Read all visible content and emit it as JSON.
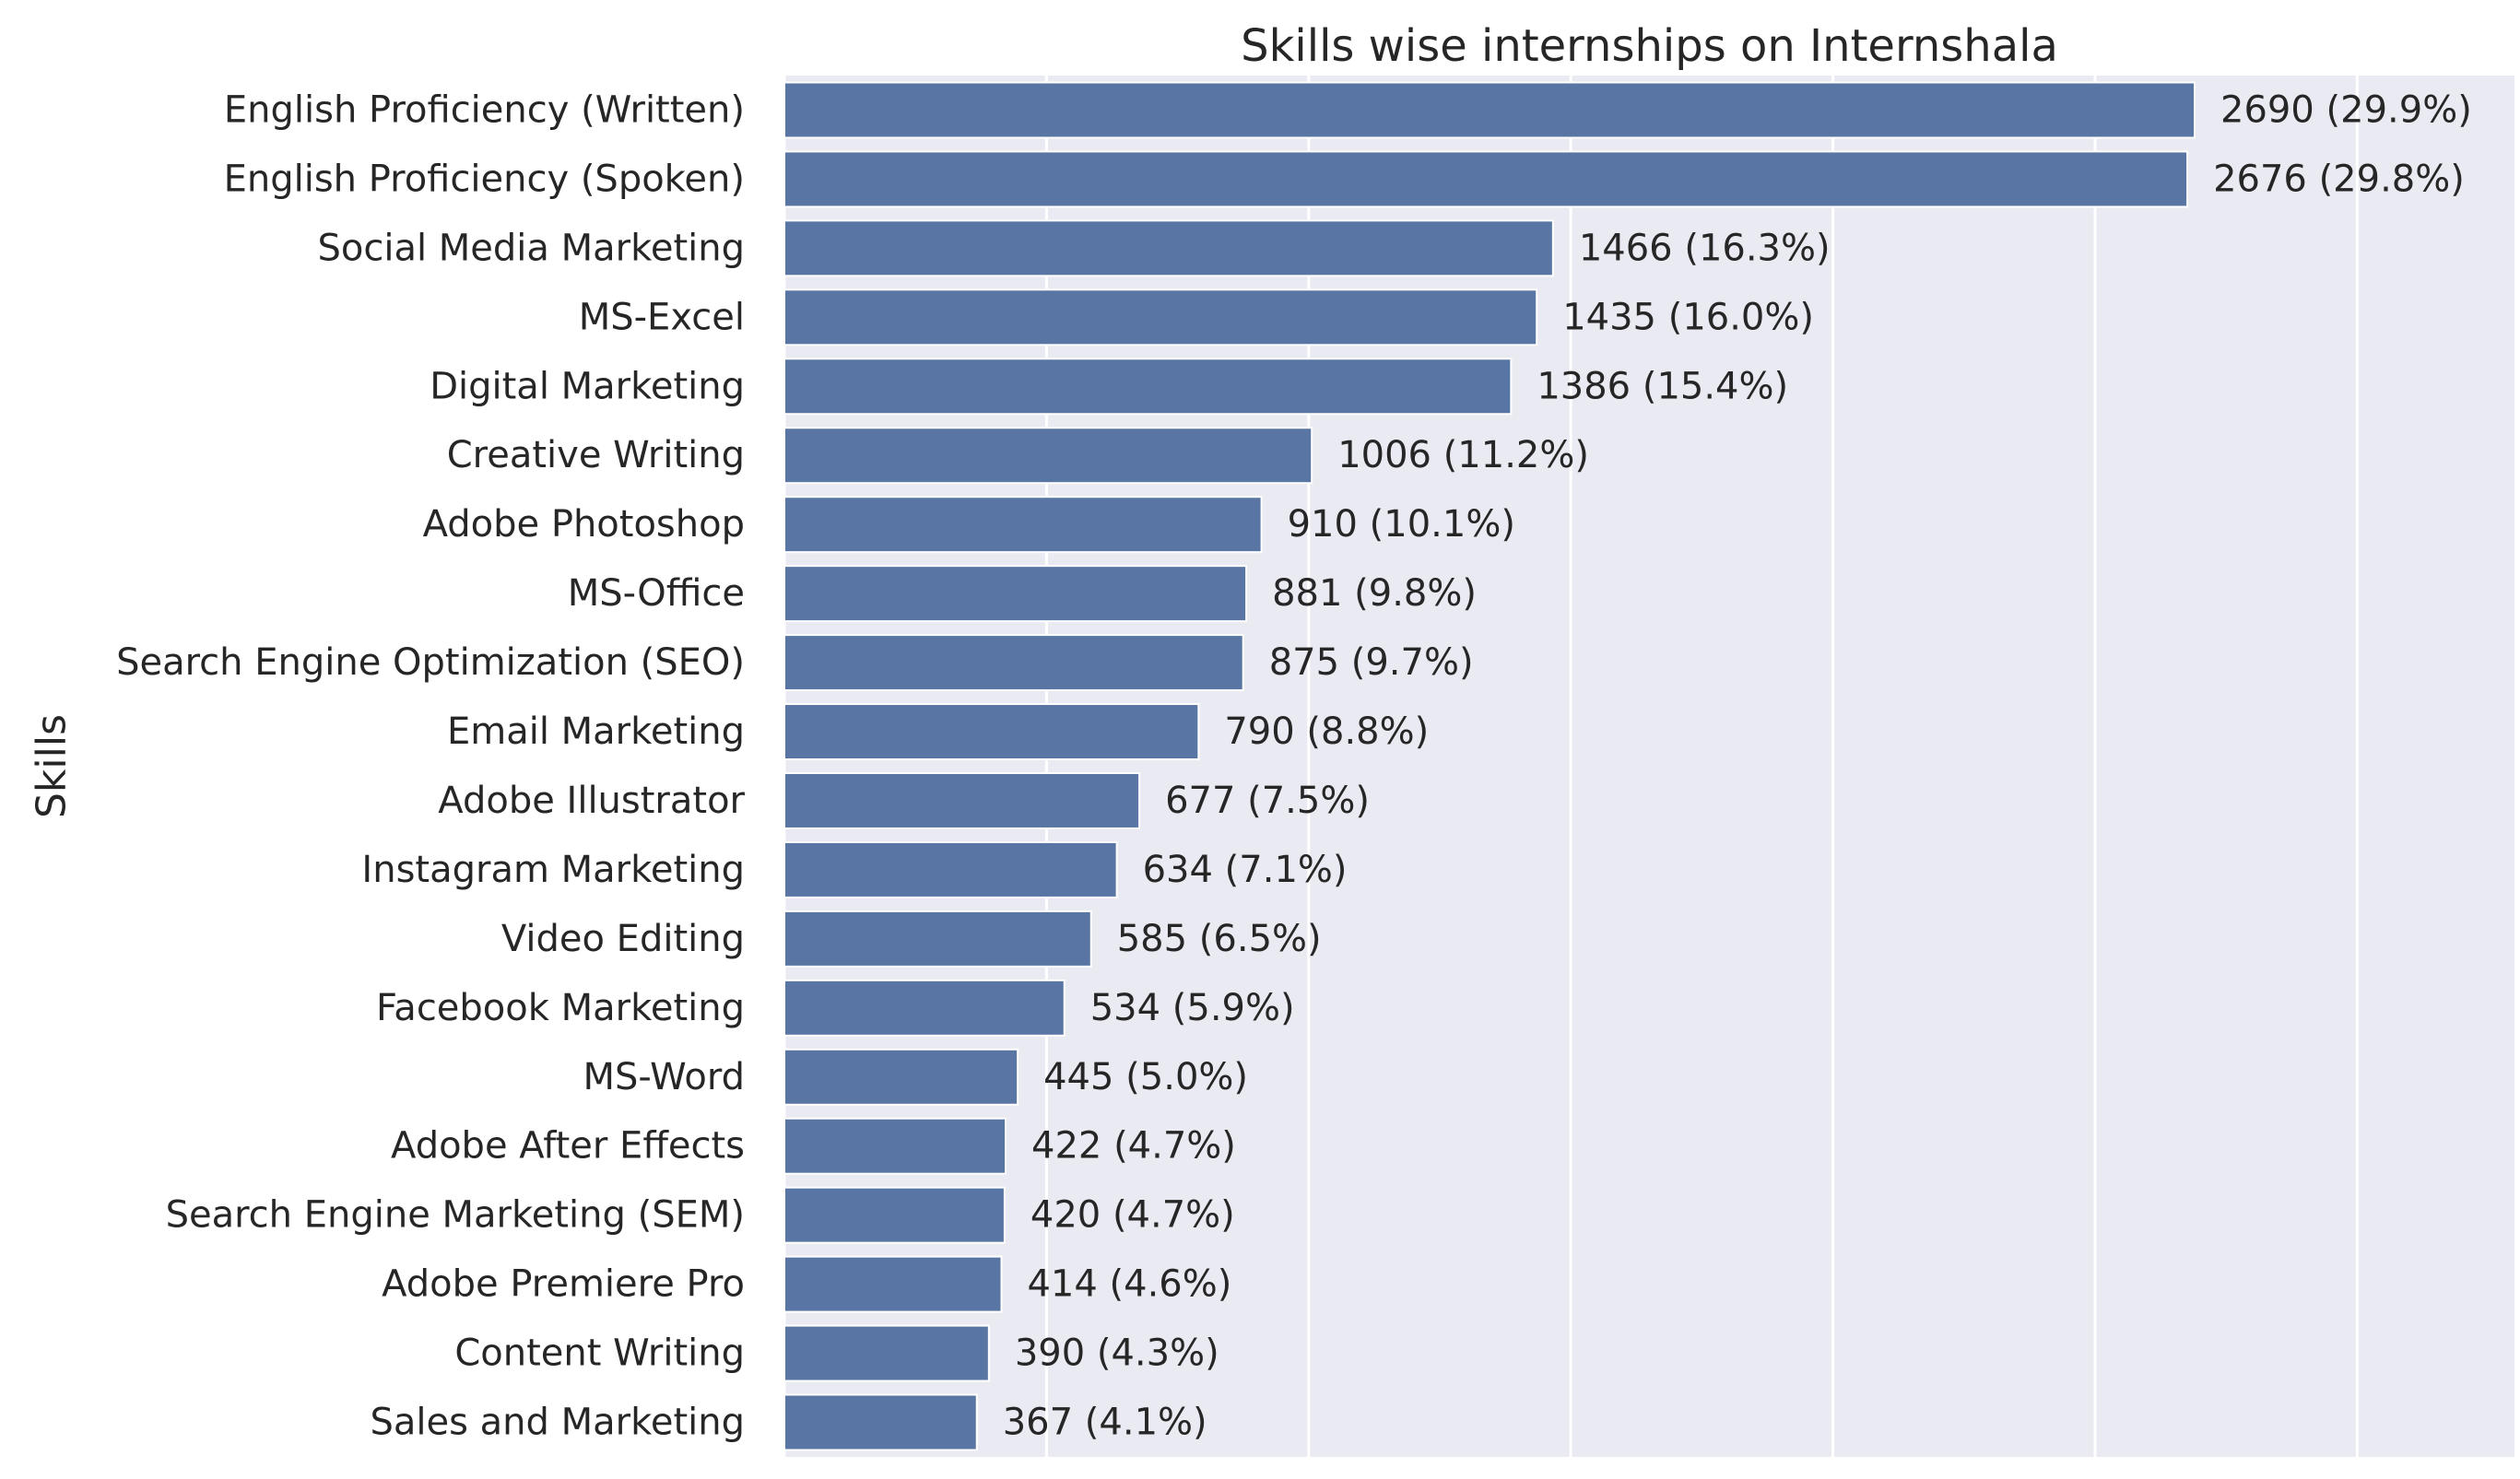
{
  "chart_data": {
    "type": "bar",
    "orientation": "horizontal",
    "title": "Skills wise internships on Internshala",
    "xlabel": "",
    "ylabel": "Skills",
    "xlim": [
      0,
      3300
    ],
    "grid": true,
    "legend": "none",
    "colors": {
      "bar": "#5975a4",
      "plot_background": "#eaeaf2",
      "grid": "#ffffff",
      "text": "#262626"
    },
    "categories": [
      "English Proficiency (Written)",
      "English Proficiency (Spoken)",
      "Social Media Marketing",
      "MS-Excel",
      "Digital Marketing",
      "Creative Writing",
      "Adobe Photoshop",
      "MS-Office",
      "Search Engine Optimization (SEO)",
      "Email Marketing",
      "Adobe Illustrator",
      "Instagram Marketing",
      "Video Editing",
      "Facebook Marketing",
      "MS-Word",
      "Adobe After Effects",
      "Search Engine Marketing (SEM)",
      "Adobe Premiere Pro",
      "Content Writing",
      "Sales and Marketing"
    ],
    "values": [
      2690,
      2676,
      1466,
      1435,
      1386,
      1006,
      910,
      881,
      875,
      790,
      677,
      634,
      585,
      534,
      445,
      422,
      420,
      414,
      390,
      367
    ],
    "data_labels": [
      "2690 (29.9%)",
      "2676 (29.8%)",
      "1466 (16.3%)",
      "1435 (16.0%)",
      "1386 (15.4%)",
      "1006 (11.2%)",
      "910 (10.1%)",
      "881 (9.8%)",
      "875 (9.7%)",
      "790 (8.8%)",
      "677 (7.5%)",
      "634 (7.1%)",
      "585 (6.5%)",
      "534 (5.9%)",
      "445 (5.0%)",
      "422 (4.7%)",
      "420 (4.7%)",
      "414 (4.6%)",
      "390 (4.3%)",
      "367 (4.1%)"
    ],
    "x_gridlines": [
      0,
      500,
      1000,
      1500,
      2000,
      2500,
      3000
    ]
  }
}
